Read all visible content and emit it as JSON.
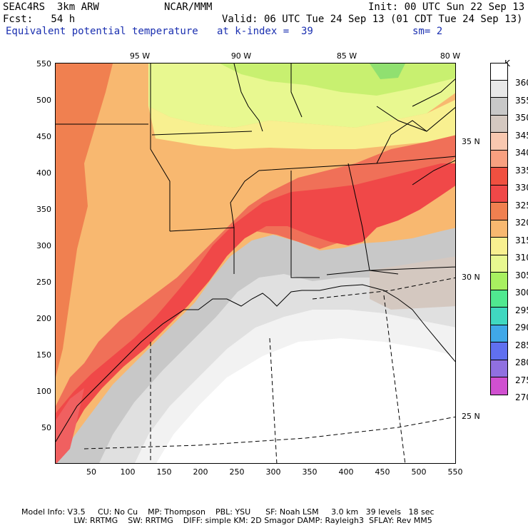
{
  "header": {
    "model": "SEAC4RS  3km ARW",
    "center": "NCAR/MMM",
    "init": "Init: 00 UTC Sun 22 Sep 13",
    "fcst": "Fcst:   54 h",
    "valid": "Valid: 06 UTC Tue 24 Sep 13 (01 CDT Tue 24 Sep 13)",
    "field": "Equivalent potential temperature",
    "level": "at k-index =  39",
    "smoothing": "sm= 2"
  },
  "map": {
    "y_ticks": [
      "550",
      "500",
      "450",
      "400",
      "350",
      "300",
      "250",
      "200",
      "150",
      "100",
      "50"
    ],
    "x_ticks": [
      "50",
      "100",
      "150",
      "200",
      "250",
      "300",
      "350",
      "400",
      "450",
      "500",
      "550"
    ],
    "lon_labels": [
      "95 W",
      "90 W",
      "85 W",
      "80 W"
    ],
    "lat_labels": [
      "35 N",
      "30 N",
      "25 N"
    ]
  },
  "colorbar": {
    "unit": "K",
    "levels": [
      "360",
      "355",
      "350",
      "345",
      "340",
      "335",
      "330",
      "325",
      "320",
      "315",
      "310",
      "305",
      "300",
      "295",
      "290",
      "285",
      "280",
      "275",
      "270"
    ],
    "colors": [
      "#ffffff",
      "#e8e8e8",
      "#c8c8c8",
      "#d4c8c0",
      "#f8c8b0",
      "#f8a080",
      "#f05040",
      "#f04848",
      "#f08050",
      "#f8b870",
      "#f8f090",
      "#e8f890",
      "#a8f060",
      "#50e890",
      "#40d8c0",
      "#40a8e8",
      "#6070f0",
      "#9070e0",
      "#d050d0"
    ]
  },
  "footer": {
    "line1": "Model Info: V3.5     CU: No Cu    MP: Thompson    PBL: YSU      SF: Noah LSM     3.0 km   39 levels   18 sec",
    "line2": "                     LW: RRTMG    SW: RRTMG    DIFF: simple KM: 2D Smagor DAMP: Rayleigh3  SFLAY: Rev MM5"
  }
}
